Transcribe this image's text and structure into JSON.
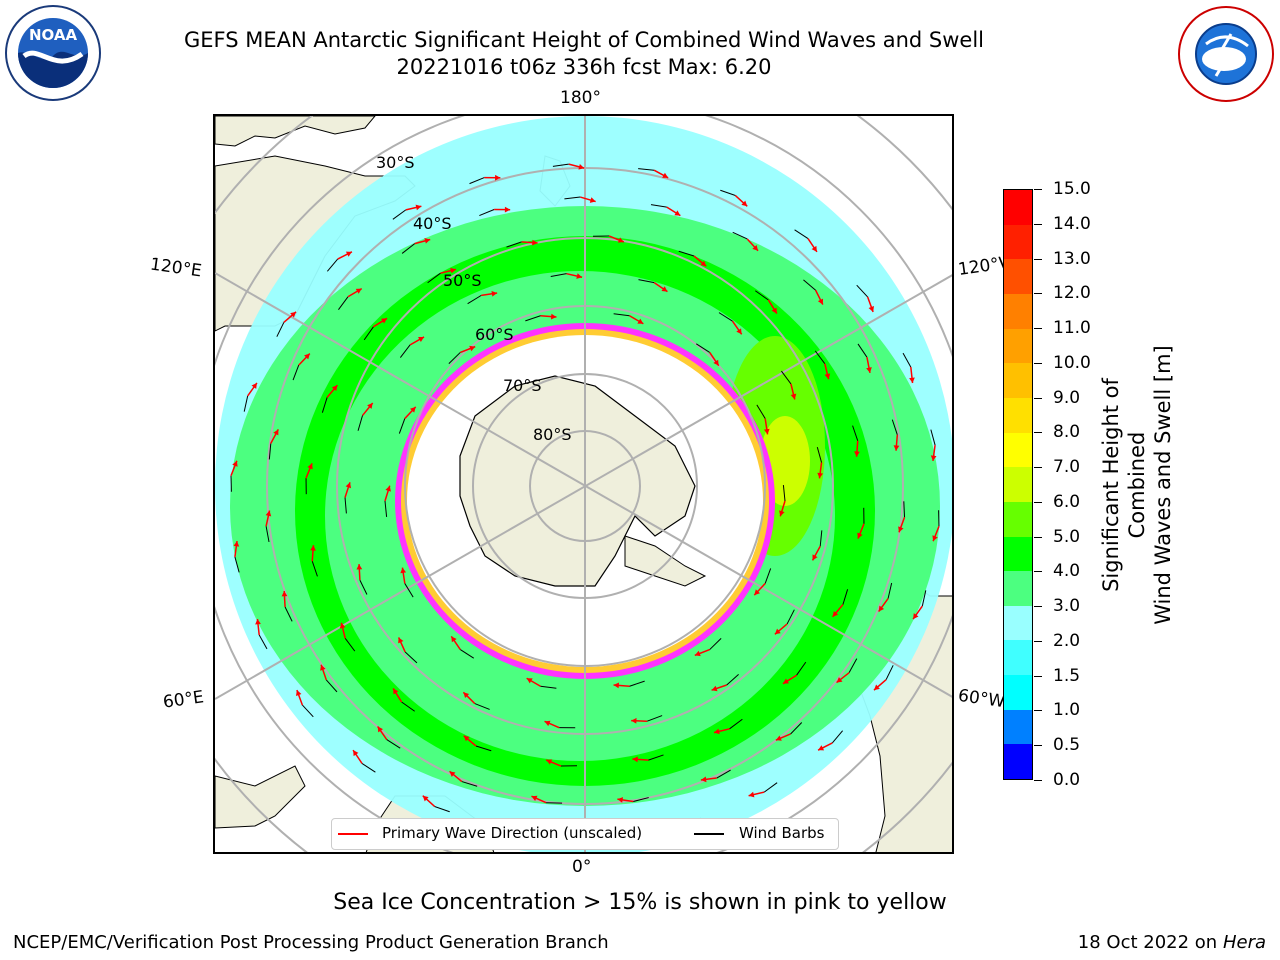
{
  "title": {
    "line1": "GEFS MEAN Antarctic Significant Height of Combined Wind Waves and Swell",
    "line2": "20221016 t06z 336h fcst   Max: 6.20"
  },
  "logos": {
    "left": "NOAA",
    "right_text": "NATIONAL WEATHER SERVICE"
  },
  "map": {
    "longitude_labels": {
      "top": "180°",
      "bottom": "0°",
      "left_upper": "120°E",
      "left_lower": "60°E",
      "right_upper": "120°W",
      "right_lower": "60°W"
    },
    "latitude_labels": [
      "30°S",
      "40°S",
      "50°S",
      "60°S",
      "70°S",
      "80°S"
    ],
    "legend": {
      "wave_direction": "Primary Wave Direction (unscaled)",
      "wind_barbs": "Wind Barbs"
    },
    "colors": {
      "land": "#efefdc",
      "ice_pink": "#ff33ff",
      "ice_yellow": "#ffcc33",
      "grid": "#b0b0b0",
      "arrow": "#ff0000"
    }
  },
  "colorbar": {
    "title_line1": "Significant Height of Combined",
    "title_line2": "Wind Waves and Swell [m]",
    "ticks": [
      "0.0",
      "0.5",
      "1.0",
      "1.5",
      "2.0",
      "3.0",
      "4.0",
      "5.0",
      "6.0",
      "7.0",
      "8.0",
      "9.0",
      "10.0",
      "11.0",
      "12.0",
      "13.0",
      "14.0",
      "15.0"
    ],
    "colors": [
      "#0000ff",
      "#0080ff",
      "#00ffff",
      "#40ffff",
      "#99ffff",
      "#4cff80",
      "#00ff00",
      "#66ff00",
      "#ccff00",
      "#ffff00",
      "#ffe000",
      "#ffc000",
      "#ffa000",
      "#ff8000",
      "#ff5000",
      "#ff2000",
      "#ff0000"
    ]
  },
  "caption": "Sea Ice Concentration > 15% is shown in pink to yellow",
  "footer": {
    "left": "NCEP/EMC/Verification Post Processing Product Generation Branch",
    "right_date": "18 Oct 2022 on ",
    "right_host": "Hera"
  }
}
